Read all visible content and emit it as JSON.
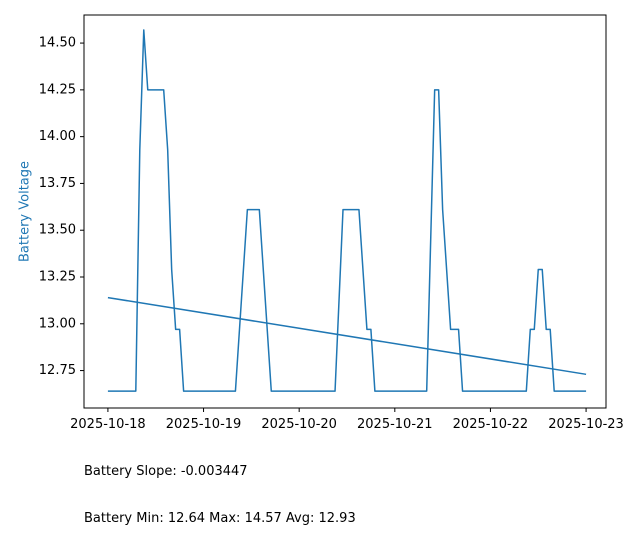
{
  "chart_data": {
    "type": "line",
    "ylabel": "Battery Voltage",
    "xlabel": "",
    "title": "",
    "colors": {
      "series": "#1f77b4",
      "ylabel": "#1f77b4",
      "axes": "#000000"
    },
    "x_ticks": [
      "2025-10-18",
      "2025-10-19",
      "2025-10-20",
      "2025-10-21",
      "2025-10-22",
      "2025-10-23"
    ],
    "y_ticks": [
      "12.75",
      "13.00",
      "13.25",
      "13.50",
      "13.75",
      "14.00",
      "14.25",
      "14.50"
    ],
    "ylim": [
      12.55,
      14.65
    ],
    "xlim": [
      "2025-10-17T18:00",
      "2025-10-23T05:00"
    ],
    "grid": false,
    "series": [
      {
        "values": [
          {
            "x": "2025-10-18T00:00",
            "y": 12.64
          },
          {
            "x": "2025-10-18T07:00",
            "y": 12.64
          },
          {
            "x": "2025-10-18T08:00",
            "y": 13.93
          },
          {
            "x": "2025-10-18T09:00",
            "y": 14.57
          },
          {
            "x": "2025-10-18T10:00",
            "y": 14.25
          },
          {
            "x": "2025-10-18T14:00",
            "y": 14.25
          },
          {
            "x": "2025-10-18T15:00",
            "y": 13.93
          },
          {
            "x": "2025-10-18T16:00",
            "y": 13.29
          },
          {
            "x": "2025-10-18T17:00",
            "y": 12.97
          },
          {
            "x": "2025-10-18T18:00",
            "y": 12.97
          },
          {
            "x": "2025-10-18T19:00",
            "y": 12.64
          },
          {
            "x": "2025-10-19T08:00",
            "y": 12.64
          },
          {
            "x": "2025-10-19T11:00",
            "y": 13.61
          },
          {
            "x": "2025-10-19T14:00",
            "y": 13.61
          },
          {
            "x": "2025-10-19T17:00",
            "y": 12.64
          },
          {
            "x": "2025-10-20T09:00",
            "y": 12.64
          },
          {
            "x": "2025-10-20T11:00",
            "y": 13.61
          },
          {
            "x": "2025-10-20T15:00",
            "y": 13.61
          },
          {
            "x": "2025-10-20T17:00",
            "y": 12.97
          },
          {
            "x": "2025-10-20T18:00",
            "y": 12.97
          },
          {
            "x": "2025-10-20T19:00",
            "y": 12.64
          },
          {
            "x": "2025-10-21T08:00",
            "y": 12.64
          },
          {
            "x": "2025-10-21T10:00",
            "y": 14.25
          },
          {
            "x": "2025-10-21T11:00",
            "y": 14.25
          },
          {
            "x": "2025-10-21T12:00",
            "y": 13.61
          },
          {
            "x": "2025-10-21T14:00",
            "y": 12.97
          },
          {
            "x": "2025-10-21T16:00",
            "y": 12.97
          },
          {
            "x": "2025-10-21T17:00",
            "y": 12.64
          },
          {
            "x": "2025-10-22T09:00",
            "y": 12.64
          },
          {
            "x": "2025-10-22T10:00",
            "y": 12.97
          },
          {
            "x": "2025-10-22T11:00",
            "y": 12.97
          },
          {
            "x": "2025-10-22T12:00",
            "y": 13.29
          },
          {
            "x": "2025-10-22T13:00",
            "y": 13.29
          },
          {
            "x": "2025-10-22T14:00",
            "y": 12.97
          },
          {
            "x": "2025-10-22T15:00",
            "y": 12.97
          },
          {
            "x": "2025-10-22T16:00",
            "y": 12.64
          },
          {
            "x": "2025-10-23T00:00",
            "y": 12.64
          }
        ]
      },
      {
        "values": [
          {
            "x": "2025-10-18T00:00",
            "y": 13.14
          },
          {
            "x": "2025-10-23T00:00",
            "y": 12.73
          }
        ]
      }
    ]
  },
  "stats": {
    "slope_line": "Battery Slope: -0.003447",
    "summary_line": "Battery Min: 12.64 Max: 14.57 Avg: 12.93"
  }
}
